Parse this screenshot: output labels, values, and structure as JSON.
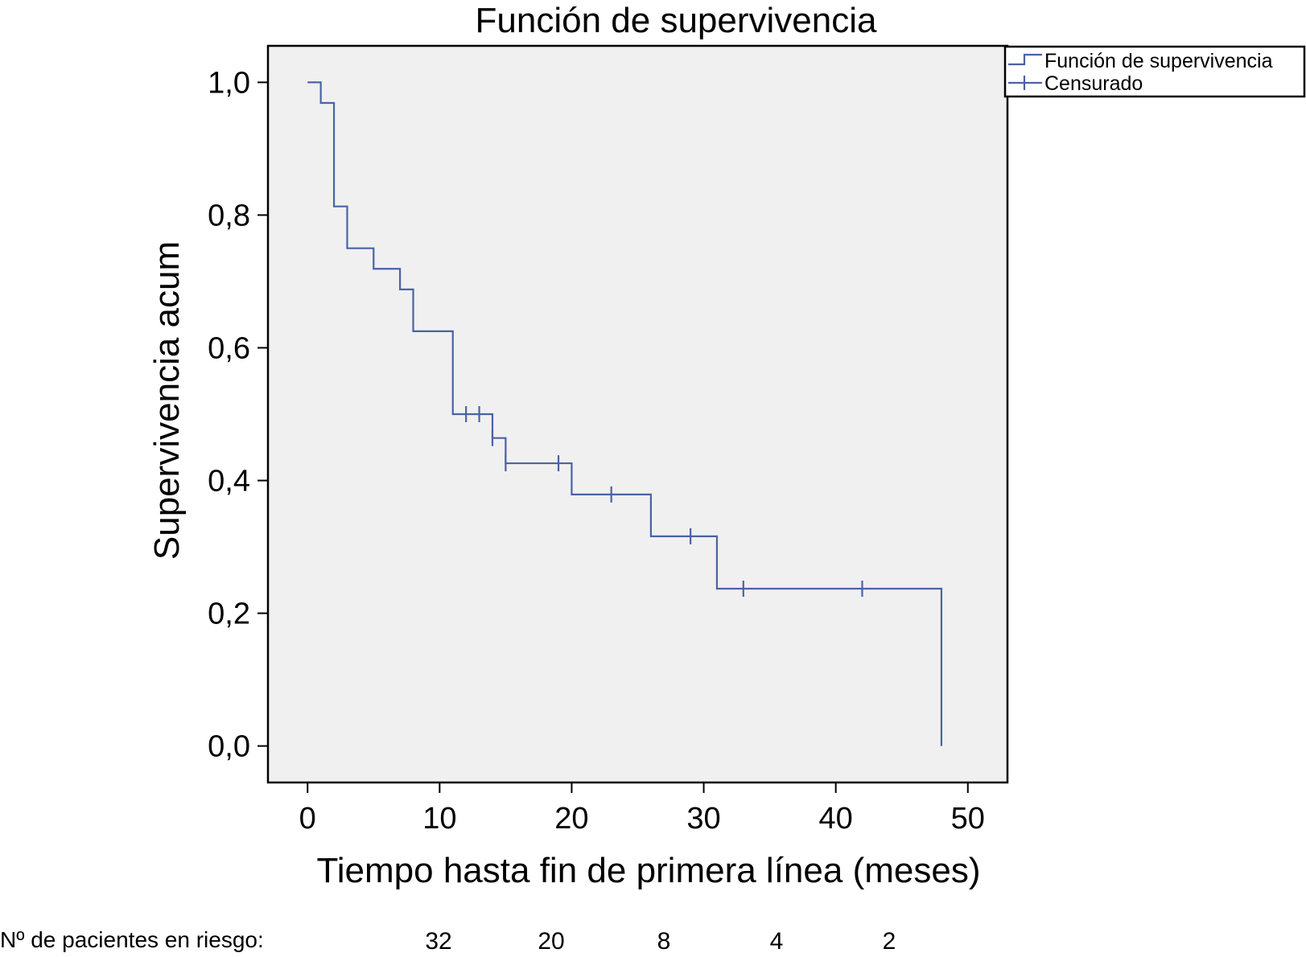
{
  "chart_data": {
    "type": "line",
    "title": "Función de supervivencia",
    "xlabel": "Tiempo hasta fin de primera línea (meses)",
    "ylabel": "Supervivencia acum",
    "xlim": [
      -3,
      53
    ],
    "ylim": [
      -0.055,
      1.055
    ],
    "x_ticks": [
      0,
      10,
      20,
      30,
      40,
      50
    ],
    "x_tick_labels": [
      "0",
      "10",
      "20",
      "30",
      "40",
      "50"
    ],
    "y_ticks": [
      0,
      0.2,
      0.4,
      0.6,
      0.8,
      1.0
    ],
    "y_tick_labels": [
      "0,0",
      "0,2",
      "0,4",
      "0,6",
      "0,8",
      "1,0"
    ],
    "grid": false,
    "legend_position": "top-right, outside plot",
    "colors": {
      "line": "#4a62a6",
      "plot_background": "#f0f0f0"
    },
    "series": [
      {
        "name": "Función de supervivencia",
        "step": [
          [
            0,
            1.0
          ],
          [
            1,
            0.969
          ],
          [
            2,
            0.813
          ],
          [
            3,
            0.75
          ],
          [
            5,
            0.719
          ],
          [
            7,
            0.688
          ],
          [
            8,
            0.625
          ],
          [
            11,
            0.5
          ],
          [
            14,
            0.464
          ],
          [
            15,
            0.426
          ],
          [
            20,
            0.379
          ],
          [
            26,
            0.316
          ],
          [
            31,
            0.237
          ],
          [
            48,
            0.0
          ]
        ]
      },
      {
        "name": "Censurado",
        "censored": [
          [
            12,
            0.5
          ],
          [
            13,
            0.5
          ],
          [
            14,
            0.464
          ],
          [
            15,
            0.426
          ],
          [
            19,
            0.426
          ],
          [
            23,
            0.379
          ],
          [
            29,
            0.316
          ],
          [
            33,
            0.237
          ],
          [
            42,
            0.237
          ]
        ]
      }
    ],
    "risk_table": {
      "label": "Nº de pacientes en riesgo:",
      "values": [
        "32",
        "20",
        "8",
        "4",
        "2"
      ]
    }
  }
}
